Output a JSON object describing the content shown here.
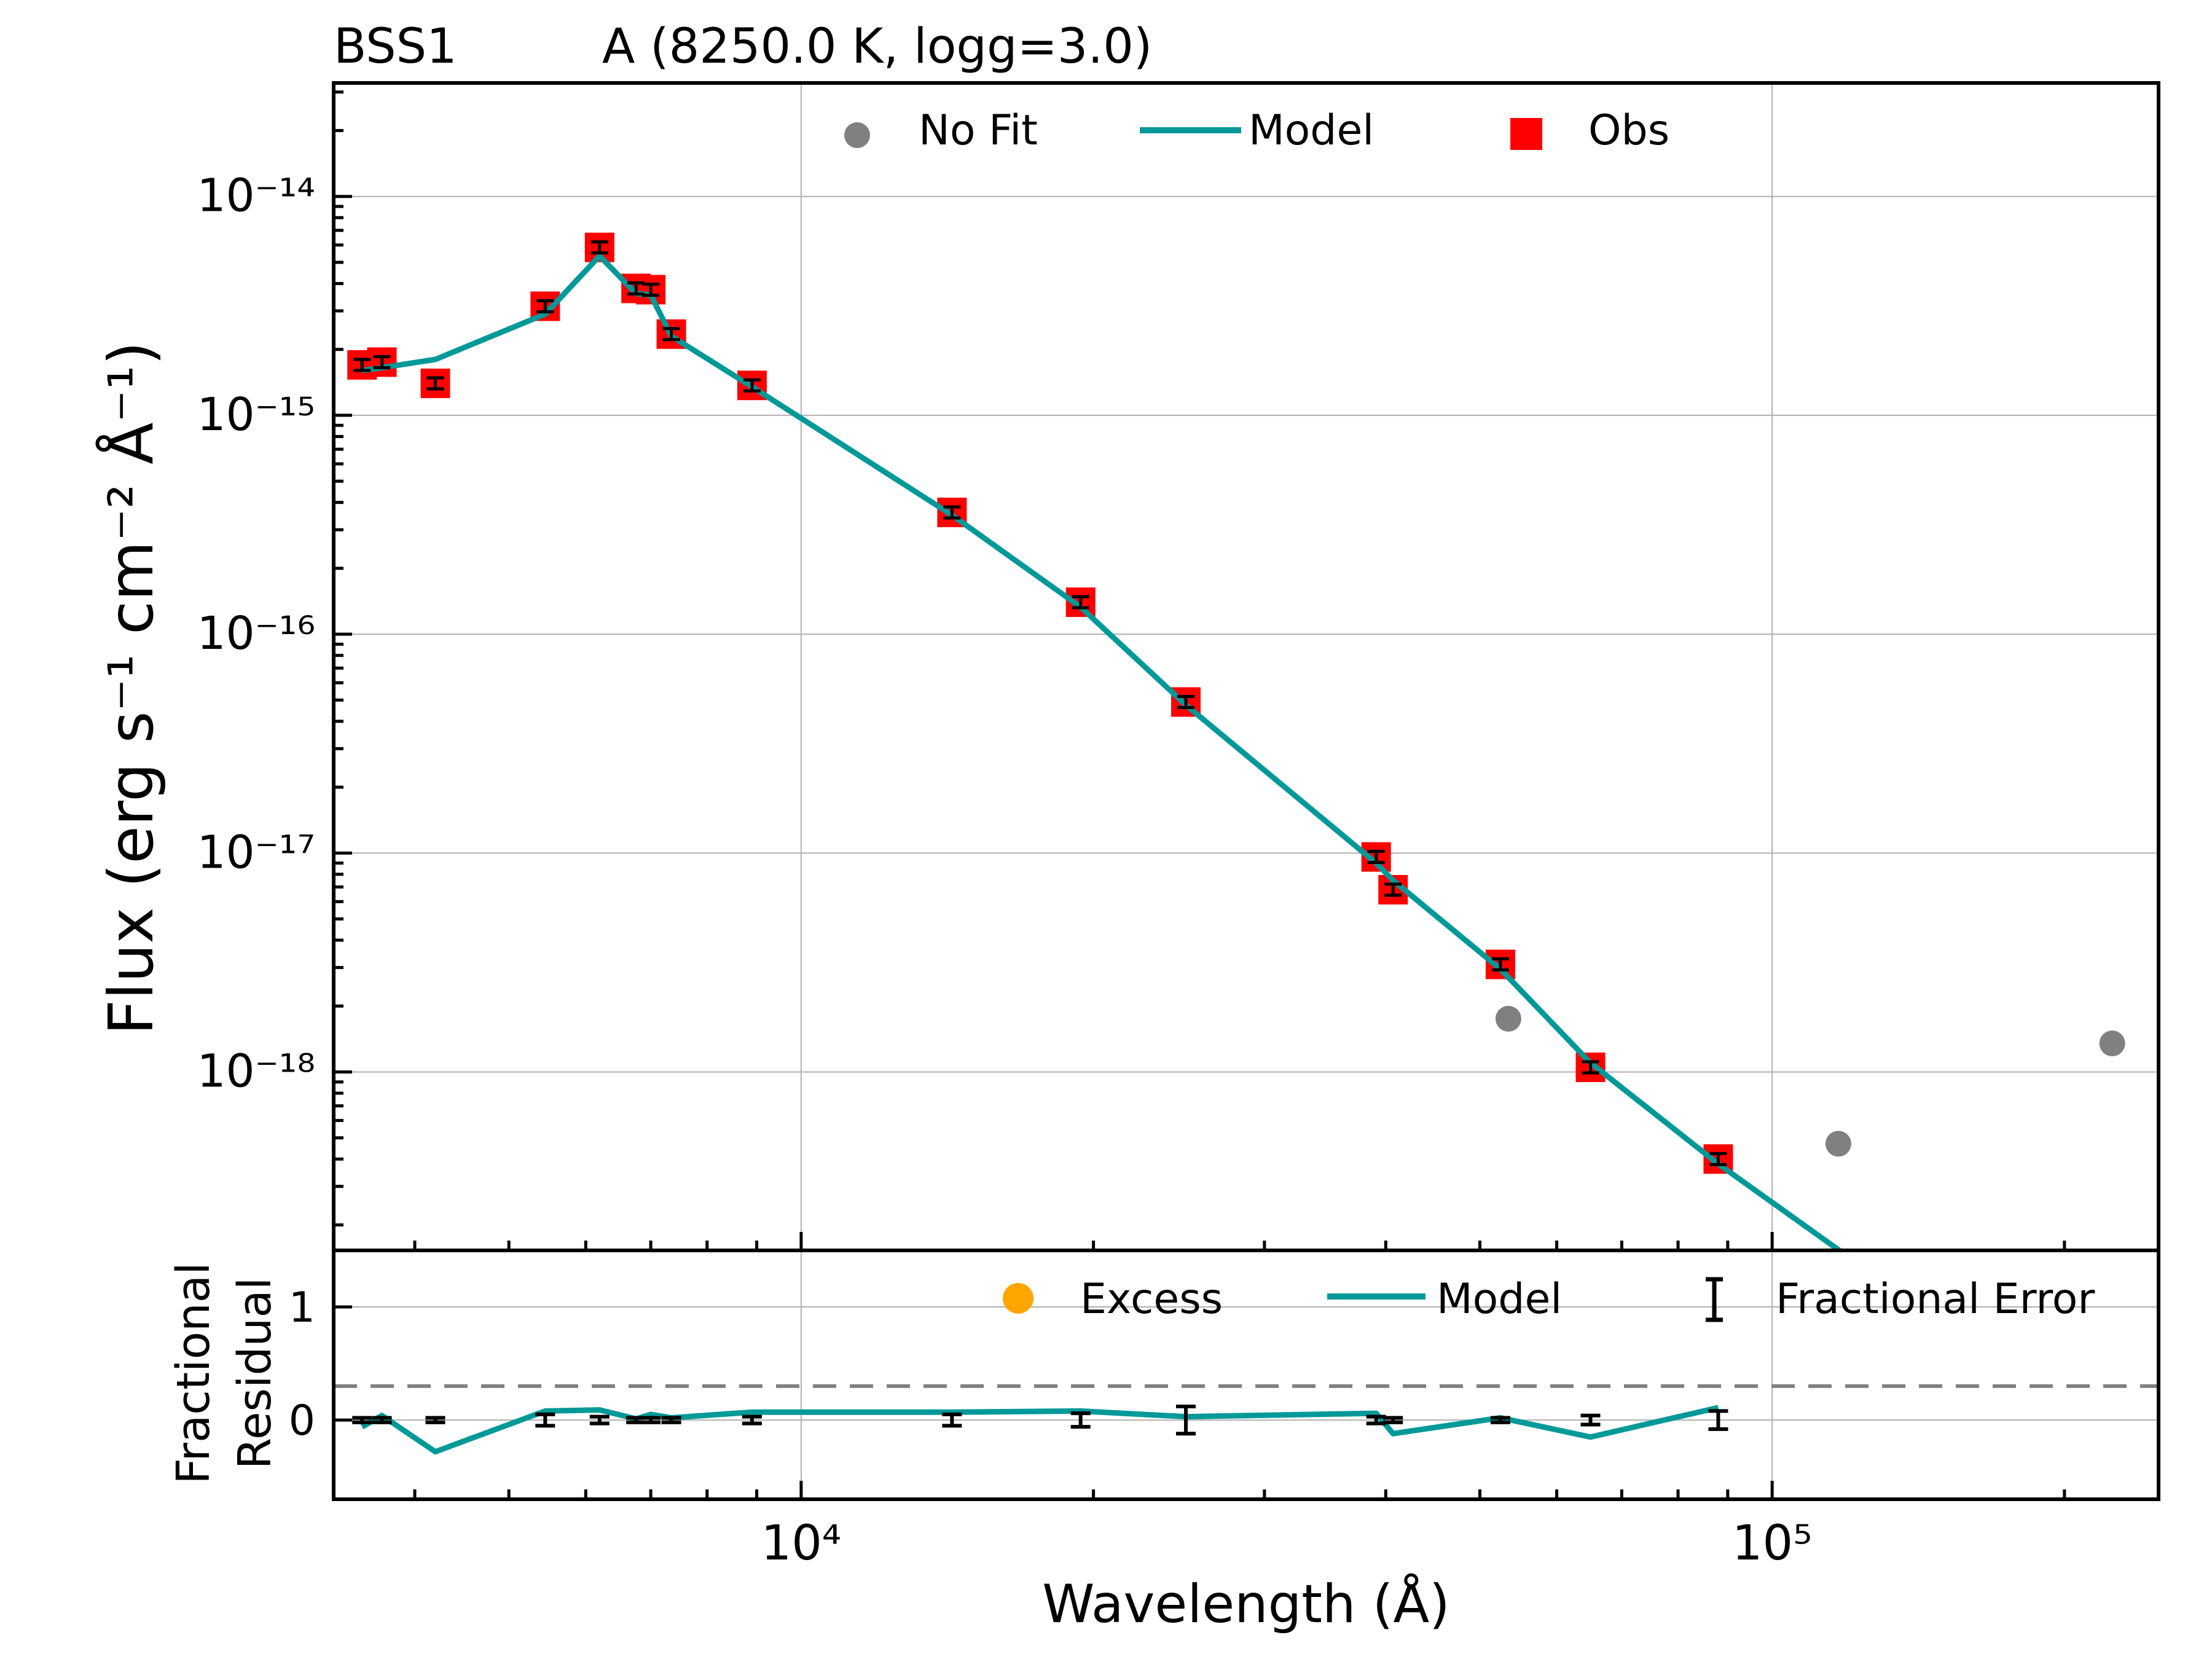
{
  "header": {
    "object_name": "BSS1",
    "model_label": "A (8250.0 K, logg=3.0)"
  },
  "chart_data": [
    {
      "type": "scatter",
      "panel": "sed",
      "xscale": "log",
      "yscale": "log",
      "xlim": [
        3300,
        250000
      ],
      "ylim": [
        1.53e-19,
        3.3e-14
      ],
      "grid": true,
      "ylabel": "Flux (erg s⁻¹ cm⁻² Å⁻¹)",
      "ytick_labels": [
        "10⁻¹⁴",
        "10⁻¹⁵",
        "10⁻¹⁶",
        "10⁻¹⁷",
        "10⁻¹⁸"
      ],
      "ytick_values": [
        1e-14,
        1e-15,
        1e-16,
        1e-17,
        1e-18
      ],
      "legend": {
        "placement": "upper-center",
        "entries": [
          "No Fit",
          "Model",
          "Obs"
        ]
      },
      "series": [
        {
          "name": "Obs",
          "kind": "marker-square",
          "color": "#ff0000",
          "x": [
            3530,
            3700,
            4200,
            5450,
            6200,
            6760,
            7000,
            7350,
            8900,
            14300,
            19400,
            24900,
            39100,
            40700,
            52500,
            65000,
            88000
          ],
          "y": [
            1.7e-15,
            1.75e-15,
            1.4e-15,
            3.15e-15,
            5.85e-15,
            3.8e-15,
            3.75e-15,
            2.35e-15,
            1.37e-15,
            3.6e-16,
            1.4e-16,
            4.9e-17,
            9.6e-18,
            6.8e-18,
            3.1e-18,
            1.05e-18,
            4e-19
          ]
        },
        {
          "name": "Model",
          "kind": "line",
          "color": "#009999",
          "x": [
            3530,
            3700,
            4200,
            5450,
            6200,
            6760,
            7000,
            7350,
            8900,
            14300,
            19400,
            24900,
            39100,
            40700,
            52500,
            65000,
            88000,
            118000
          ],
          "y": [
            1.6e-15,
            1.65e-15,
            1.8e-15,
            2.9e-15,
            5.35e-15,
            3.6e-15,
            3.55e-15,
            2.3e-15,
            1.35e-15,
            3.5e-16,
            1.33e-16,
            4.75e-17,
            9e-18,
            7.5e-18,
            2.95e-18,
            1.1e-18,
            3.8e-19,
            1.5e-19
          ]
        },
        {
          "name": "No Fit",
          "kind": "marker-circle",
          "color": "#808080",
          "x": [
            53500,
            117000,
            224000
          ],
          "y": [
            1.75e-18,
            4.7e-19,
            1.35e-18
          ]
        }
      ]
    },
    {
      "type": "line",
      "panel": "residual",
      "xscale": "log",
      "xlim": [
        3300,
        250000
      ],
      "ylim": [
        -0.7,
        1.5
      ],
      "grid": true,
      "xlabel": "Wavelength (Å)",
      "ylabel": [
        "Fractional",
        "Residual"
      ],
      "ytick_labels": [
        "1",
        "0"
      ],
      "ytick_values": [
        1,
        0
      ],
      "xtick_labels": [
        "10⁴",
        "10⁵"
      ],
      "xtick_values": [
        10000,
        100000
      ],
      "threshold_line": {
        "y": 0.3,
        "color": "#808080",
        "style": "dashed"
      },
      "legend": {
        "placement": "upper-right",
        "entries": [
          "Excess",
          "Model",
          "Fractional Error"
        ]
      },
      "series": [
        {
          "name": "Model",
          "kind": "line",
          "color": "#009999",
          "x": [
            3530,
            3700,
            4200,
            5450,
            6200,
            6760,
            7000,
            7350,
            8900,
            14300,
            19400,
            24900,
            39100,
            40700,
            52500,
            65000,
            88000
          ],
          "y": [
            -0.06,
            0.04,
            -0.28,
            0.08,
            0.09,
            0.01,
            0.05,
            0.02,
            0.07,
            0.07,
            0.08,
            0.03,
            0.06,
            -0.12,
            0.02,
            -0.15,
            0.11
          ]
        },
        {
          "name": "Fractional Error",
          "kind": "errorbar",
          "color": "#000000",
          "x": [
            3530,
            3700,
            4200,
            5450,
            6200,
            6760,
            7000,
            7350,
            8900,
            14300,
            19400,
            24900,
            39100,
            40700,
            52500,
            65000,
            88000
          ],
          "y": [
            0,
            0,
            0,
            0,
            0,
            0,
            0,
            0,
            0,
            0,
            0,
            0,
            0,
            0,
            0,
            0,
            0
          ],
          "err": [
            0.02,
            0.02,
            0.02,
            0.05,
            0.03,
            0.02,
            0.02,
            0.02,
            0.03,
            0.05,
            0.06,
            0.12,
            0.03,
            0.02,
            0.02,
            0.04,
            0.08
          ]
        }
      ]
    }
  ]
}
